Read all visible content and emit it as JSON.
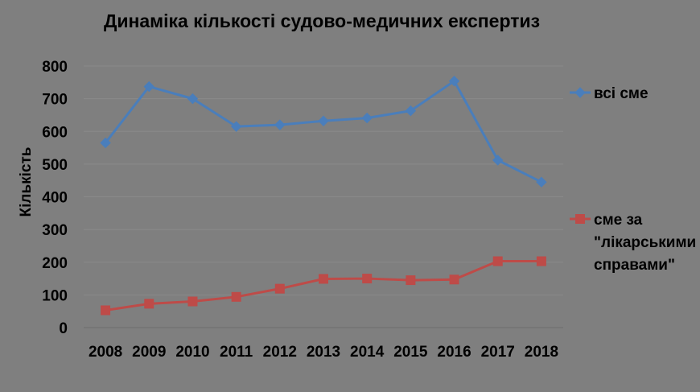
{
  "chart_data": {
    "type": "line",
    "title": "Динаміка кількості судово-медичних експертиз",
    "xlabel": "",
    "ylabel": "Кількість",
    "categories": [
      "2008",
      "2009",
      "2010",
      "2011",
      "2012",
      "2013",
      "2014",
      "2015",
      "2016",
      "2017",
      "2018"
    ],
    "ylim": [
      0,
      800
    ],
    "yticks": [
      0,
      100,
      200,
      300,
      400,
      500,
      600,
      700,
      800
    ],
    "grid": true,
    "legend_position": "right",
    "series": [
      {
        "name": "всі сме",
        "legend_lines": [
          "всі сме"
        ],
        "color": "#4a7ebb",
        "marker": "diamond",
        "values": [
          565,
          737,
          700,
          615,
          620,
          632,
          641,
          663,
          754,
          512,
          445
        ]
      },
      {
        "name": "сме за \"лікарськими справами\"",
        "legend_lines": [
          "сме за",
          "\"лікарськими",
          "справами\""
        ],
        "color": "#be4b48",
        "marker": "square",
        "values": [
          53,
          73,
          80,
          94,
          119,
          149,
          150,
          145,
          147,
          203,
          203
        ]
      }
    ]
  }
}
